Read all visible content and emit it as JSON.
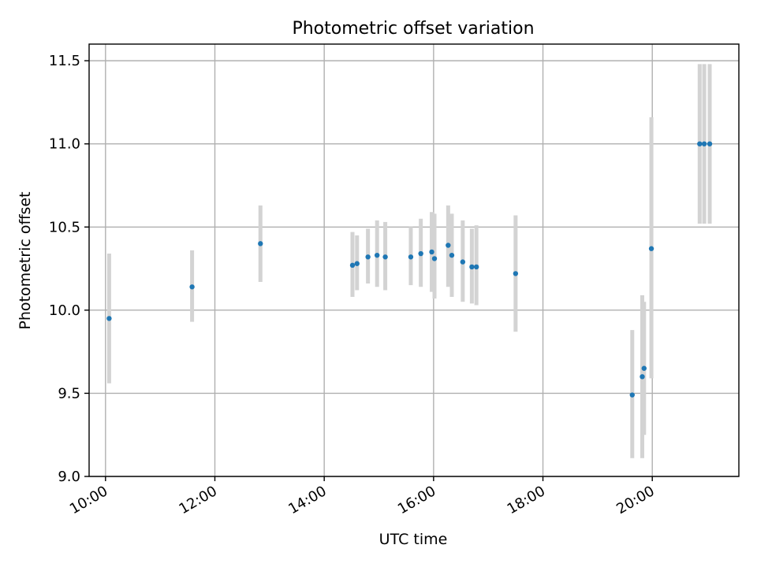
{
  "chart_data": {
    "type": "scatter",
    "title": "Photometric offset variation",
    "xlabel": "UTC time",
    "ylabel": "Photometric offset",
    "xlim": [
      "09:42",
      "21:35"
    ],
    "ylim": [
      9.0,
      11.6
    ],
    "xticks": [
      "10:00",
      "12:00",
      "14:00",
      "16:00",
      "18:00",
      "20:00"
    ],
    "yticks": [
      "9.0",
      "9.5",
      "10.0",
      "10.5",
      "11.0",
      "11.5"
    ],
    "grid": true,
    "series": [
      {
        "color": "#1f77b4",
        "errorbar_color": "#d3d3d3",
        "points": [
          {
            "x": "10:04",
            "y": 9.95,
            "ylo": 9.56,
            "yhi": 10.34
          },
          {
            "x": "11:35",
            "y": 10.14,
            "ylo": 9.93,
            "yhi": 10.36
          },
          {
            "x": "12:50",
            "y": 10.4,
            "ylo": 10.17,
            "yhi": 10.63
          },
          {
            "x": "14:31",
            "y": 10.27,
            "ylo": 10.08,
            "yhi": 10.47
          },
          {
            "x": "14:36",
            "y": 10.28,
            "ylo": 10.12,
            "yhi": 10.45
          },
          {
            "x": "14:48",
            "y": 10.32,
            "ylo": 10.16,
            "yhi": 10.49
          },
          {
            "x": "14:58",
            "y": 10.33,
            "ylo": 10.14,
            "yhi": 10.54
          },
          {
            "x": "15:07",
            "y": 10.32,
            "ylo": 10.12,
            "yhi": 10.53
          },
          {
            "x": "15:35",
            "y": 10.32,
            "ylo": 10.15,
            "yhi": 10.5
          },
          {
            "x": "15:46",
            "y": 10.34,
            "ylo": 10.14,
            "yhi": 10.55
          },
          {
            "x": "15:58",
            "y": 10.35,
            "ylo": 10.11,
            "yhi": 10.59
          },
          {
            "x": "16:01",
            "y": 10.31,
            "ylo": 10.07,
            "yhi": 10.58
          },
          {
            "x": "16:16",
            "y": 10.39,
            "ylo": 10.14,
            "yhi": 10.63
          },
          {
            "x": "16:20",
            "y": 10.33,
            "ylo": 10.08,
            "yhi": 10.58
          },
          {
            "x": "16:32",
            "y": 10.29,
            "ylo": 10.05,
            "yhi": 10.54
          },
          {
            "x": "16:42",
            "y": 10.26,
            "ylo": 10.04,
            "yhi": 10.49
          },
          {
            "x": "16:47",
            "y": 10.26,
            "ylo": 10.03,
            "yhi": 10.51
          },
          {
            "x": "17:30",
            "y": 10.22,
            "ylo": 9.87,
            "yhi": 10.57
          },
          {
            "x": "19:38",
            "y": 9.49,
            "ylo": 9.11,
            "yhi": 9.88
          },
          {
            "x": "19:49",
            "y": 9.6,
            "ylo": 9.11,
            "yhi": 10.09
          },
          {
            "x": "19:51",
            "y": 9.65,
            "ylo": 9.25,
            "yhi": 10.05
          },
          {
            "x": "19:59",
            "y": 10.37,
            "ylo": 9.59,
            "yhi": 11.16
          },
          {
            "x": "20:52",
            "y": 11.0,
            "ylo": 10.52,
            "yhi": 11.48
          },
          {
            "x": "20:57",
            "y": 11.0,
            "ylo": 10.52,
            "yhi": 11.48
          },
          {
            "x": "21:03",
            "y": 11.0,
            "ylo": 10.52,
            "yhi": 11.48
          }
        ]
      }
    ]
  }
}
